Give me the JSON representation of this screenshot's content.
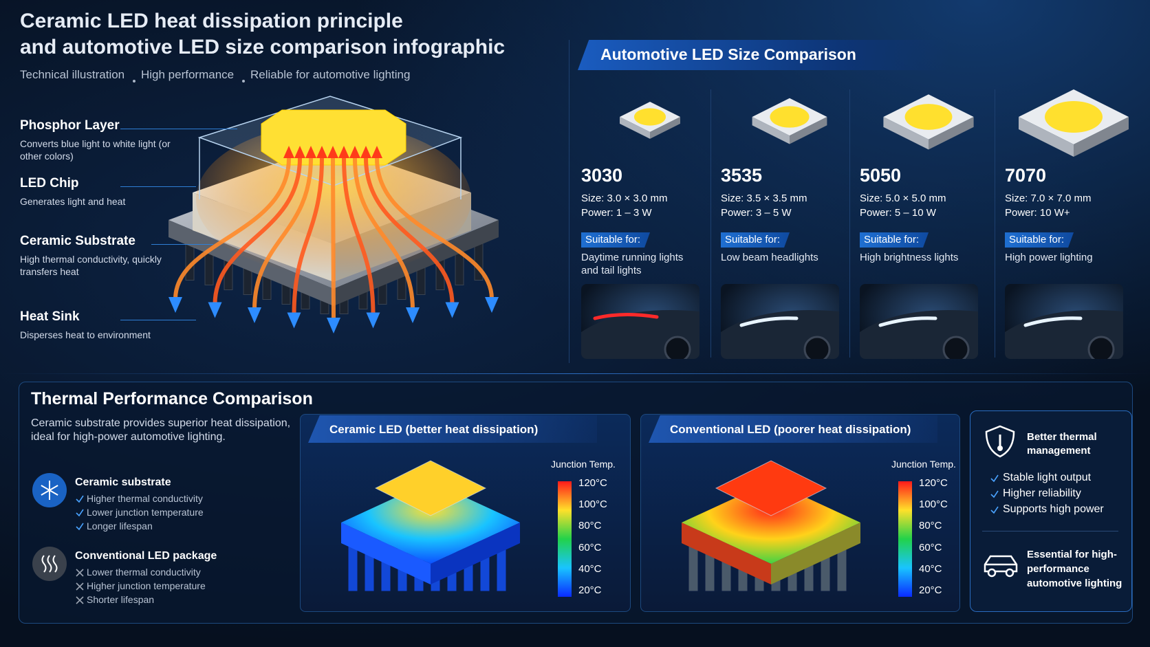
{
  "header": {
    "title_line1": "Ceramic LED heat dissipation principle",
    "title_line2": "and automotive LED size comparison infographic",
    "subtitle": [
      "Technical illustration",
      "High performance",
      "Reliable for automotive lighting"
    ]
  },
  "layers": [
    {
      "name": "Phosphor Layer",
      "desc": "Converts blue light to white light (or other colors)"
    },
    {
      "name": "LED Chip",
      "desc": "Generates light and heat"
    },
    {
      "name": "Ceramic Substrate",
      "desc": "High thermal conductivity, quickly transfers heat"
    },
    {
      "name": "Heat Sink",
      "desc": "Disperses heat to environment"
    }
  ],
  "size_comparison": {
    "title": "Automotive LED Size Comparison",
    "items": [
      {
        "code": "3030",
        "size": "Size: 3.0 × 3.0 mm",
        "power": "Power: 1 – 3 W",
        "suitable_label": "Suitable for:",
        "use": "Daytime running lights and tail lights"
      },
      {
        "code": "3535",
        "size": "Size: 3.5 × 3.5 mm",
        "power": "Power: 3 – 5 W",
        "suitable_label": "Suitable for:",
        "use": "Low beam headlights"
      },
      {
        "code": "5050",
        "size": "Size: 5.0 × 5.0 mm",
        "power": "Power: 5 – 10 W",
        "suitable_label": "Suitable for:",
        "use": "High brightness lights"
      },
      {
        "code": "7070",
        "size": "Size: 7.0 × 7.0 mm",
        "power": "Power: 10 W+",
        "suitable_label": "Suitable for:",
        "use": "High power lighting"
      }
    ]
  },
  "thermal": {
    "title": "Thermal Performance Comparison",
    "intro": "Ceramic substrate provides superior heat dissipation, ideal for high-power automotive lighting.",
    "substrates": [
      {
        "name": "Ceramic substrate",
        "points": [
          "Higher thermal conductivity",
          "Lower junction temperature",
          "Longer lifespan"
        ]
      },
      {
        "name": "Conventional LED package",
        "points": [
          "Lower thermal conductivity",
          "Higher junction temperature",
          "Shorter lifespan"
        ]
      }
    ],
    "panels": [
      {
        "title": "Ceramic LED (better heat dissipation)",
        "scale_title": "Junction Temp.",
        "scale": [
          "120°C",
          "100°C",
          "80°C",
          "60°C",
          "40°C",
          "20°C"
        ]
      },
      {
        "title": "Conventional LED (poorer heat dissipation)",
        "scale_title": "Junction Temp.",
        "scale": [
          "120°C",
          "100°C",
          "80°C",
          "60°C",
          "40°C",
          "20°C"
        ]
      }
    ],
    "benefits": {
      "title": "Better thermal management",
      "points": [
        "Stable light output",
        "Higher reliability",
        "Supports high power"
      ],
      "footer": "Essential for high-performance automotive lighting"
    }
  }
}
